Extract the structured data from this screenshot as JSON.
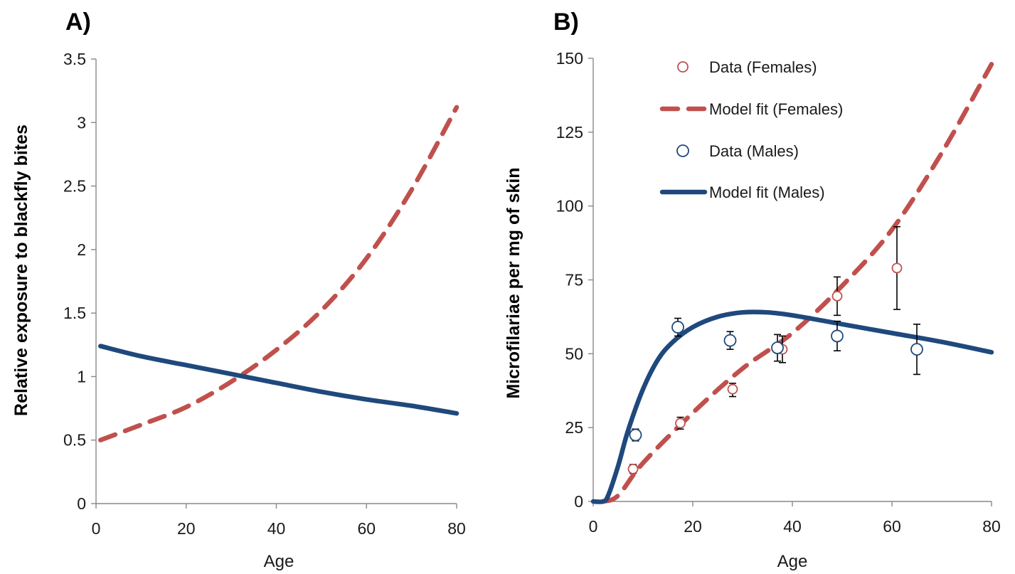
{
  "chart_data": [
    {
      "panel_label": "A)",
      "type": "line",
      "xlabel": "Age",
      "ylabel": "Relative exposure to blackfly bites",
      "xlim": [
        0,
        80
      ],
      "ylim": [
        0,
        3.5
      ],
      "x_ticks": [
        "0",
        "20",
        "40",
        "60",
        "80"
      ],
      "y_ticks": [
        "0",
        "0.5",
        "1",
        "1.5",
        "2",
        "2.5",
        "3",
        "3.5"
      ],
      "grid": false,
      "series": [
        {
          "color": "#C0504D",
          "style": "dashed",
          "x": [
            1,
            10,
            20,
            30,
            40,
            50,
            60,
            70,
            80
          ],
          "y": [
            0.5,
            0.62,
            0.76,
            0.96,
            1.21,
            1.52,
            1.93,
            2.47,
            3.12
          ]
        },
        {
          "color": "#1F497D",
          "style": "solid",
          "x": [
            1,
            10,
            20,
            30,
            40,
            50,
            60,
            70,
            80
          ],
          "y": [
            1.24,
            1.16,
            1.09,
            1.02,
            0.95,
            0.88,
            0.82,
            0.77,
            0.71
          ]
        }
      ]
    },
    {
      "panel_label": "B)",
      "type": "line",
      "xlabel": "Age",
      "ylabel": "Microfilariae per mg of skin",
      "xlim": [
        0,
        80
      ],
      "ylim": [
        0,
        150
      ],
      "x_ticks": [
        "0",
        "20",
        "40",
        "60",
        "80"
      ],
      "y_ticks": [
        "0",
        "25",
        "50",
        "75",
        "100",
        "125",
        "150"
      ],
      "grid": false,
      "legend_position": "top-left",
      "series": [
        {
          "name": "Data (Females)",
          "kind": "scatter",
          "color": "#C0504D",
          "points": [
            {
              "x": 8,
              "y": 11,
              "low": 9.5,
              "high": 12.5
            },
            {
              "x": 17.5,
              "y": 26.5,
              "low": 24.5,
              "high": 28.5
            },
            {
              "x": 28,
              "y": 38,
              "low": 35.5,
              "high": 40
            },
            {
              "x": 38,
              "y": 51.5,
              "low": 47,
              "high": 56
            },
            {
              "x": 49,
              "y": 69.5,
              "low": 63,
              "high": 76
            },
            {
              "x": 61,
              "y": 79,
              "low": 65,
              "high": 93
            }
          ]
        },
        {
          "name": "Model fit (Females)",
          "kind": "line",
          "color": "#C0504D",
          "style": "dashed",
          "x": [
            2,
            5,
            10,
            20,
            30,
            40,
            50,
            60,
            70,
            80
          ],
          "y": [
            0,
            2,
            13,
            30,
            45,
            57,
            73,
            92,
            118,
            148
          ]
        },
        {
          "name": "Data (Males)",
          "kind": "scatter",
          "color": "#1F497D",
          "points": [
            {
              "x": 8.5,
              "y": 22.5,
              "low": 20.5,
              "high": 24.5
            },
            {
              "x": 17,
              "y": 59,
              "low": 56,
              "high": 62
            },
            {
              "x": 27.5,
              "y": 54.5,
              "low": 51.5,
              "high": 57.5
            },
            {
              "x": 37,
              "y": 52,
              "low": 47.5,
              "high": 56.5
            },
            {
              "x": 49,
              "y": 56,
              "low": 51,
              "high": 61
            },
            {
              "x": 65,
              "y": 51.5,
              "low": 43,
              "high": 60
            }
          ]
        },
        {
          "name": "Model fit (Males)",
          "kind": "line",
          "color": "#1F497D",
          "style": "solid",
          "x": [
            0,
            2,
            3,
            5,
            7,
            10,
            13,
            16,
            20,
            25,
            30,
            35,
            40,
            50,
            60,
            70,
            80
          ],
          "y": [
            0,
            0,
            2,
            12,
            24,
            38,
            48,
            54,
            59,
            62.5,
            64,
            64,
            63,
            60,
            57,
            54,
            50.5
          ]
        }
      ]
    }
  ]
}
